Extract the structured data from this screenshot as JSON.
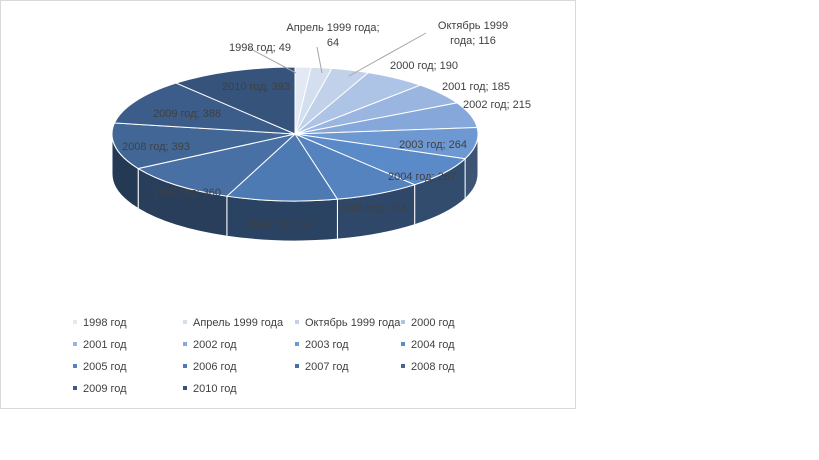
{
  "chart_data": {
    "type": "pie",
    "title": "",
    "categories": [
      "1998 год",
      "Апрель 1999 года",
      "Октябрь 1999 года",
      "2000 год",
      "2001 год",
      "2002 год",
      "2003 год",
      "2004 год",
      "2005 год",
      "2006 год",
      "2007 год",
      "2008 год",
      "2009 год",
      "2010 год"
    ],
    "values": [
      49,
      64,
      116,
      190,
      185,
      215,
      264,
      267,
      266,
      342,
      360,
      393,
      388,
      393
    ],
    "data_labels": [
      "1998 год; 49",
      "Апрель 1999 года; 64",
      "Октябрь 1999 года; 116",
      "2000 год; 190",
      "2001 год; 185",
      "2002 год; 215",
      "2003 год; 264",
      "2004 год; 267",
      "2005 год; 266",
      "2006 год; 342",
      "2007 год; 360",
      "2008 год; 393",
      "2009 год; 388",
      "2010 год; 393"
    ],
    "colors": [
      "#e3e9f3",
      "#d3deee",
      "#c1d1ea",
      "#aec4e6",
      "#9ab6e0",
      "#86a7da",
      "#6e98d2",
      "#5b8ac8",
      "#5583bf",
      "#4e7ab3",
      "#4870a5",
      "#426797",
      "#3c5d89",
      "#36537b"
    ],
    "legend_position": "bottom",
    "style": "3d-pie"
  }
}
